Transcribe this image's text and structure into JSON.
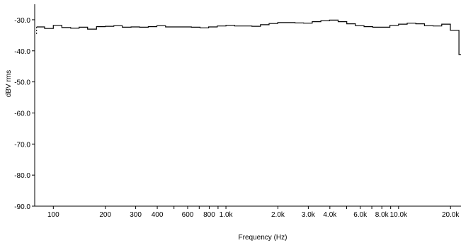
{
  "chart_data": {
    "type": "line",
    "title": "",
    "xlabel": "Frequency (Hz)",
    "ylabel": "dBV rms",
    "xscale": "log",
    "xlim": [
      78,
      23000
    ],
    "ylim": [
      -90,
      -25
    ],
    "grid": false,
    "line_style": "step",
    "colors": {
      "line": "#000000",
      "axis": "#000000",
      "background": "#ffffff"
    },
    "y_ticks": [
      {
        "value": -30,
        "label": "-30.0"
      },
      {
        "value": -40,
        "label": "-40.0"
      },
      {
        "value": -50,
        "label": "-50.0"
      },
      {
        "value": -60,
        "label": "-60.0"
      },
      {
        "value": -70,
        "label": "-70.0"
      },
      {
        "value": -80,
        "label": "-80.0"
      },
      {
        "value": -90,
        "label": "-90.0"
      }
    ],
    "x_ticks": [
      {
        "value": 100,
        "label": "100"
      },
      {
        "value": 200,
        "label": "200"
      },
      {
        "value": 300,
        "label": "300"
      },
      {
        "value": 400,
        "label": "400"
      },
      {
        "value": 500,
        "label": ""
      },
      {
        "value": 600,
        "label": "600"
      },
      {
        "value": 700,
        "label": ""
      },
      {
        "value": 800,
        "label": "800"
      },
      {
        "value": 900,
        "label": ""
      },
      {
        "value": 1000,
        "label": "1.0k"
      },
      {
        "value": 2000,
        "label": "2.0k"
      },
      {
        "value": 3000,
        "label": "3.0k"
      },
      {
        "value": 4000,
        "label": "4.0k"
      },
      {
        "value": 5000,
        "label": ""
      },
      {
        "value": 6000,
        "label": "6.0k"
      },
      {
        "value": 7000,
        "label": ""
      },
      {
        "value": 8000,
        "label": "8.0k"
      },
      {
        "value": 9000,
        "label": ""
      },
      {
        "value": 10000,
        "label": "10.0k"
      },
      {
        "value": 20000,
        "label": "20.0k"
      }
    ],
    "series": [
      {
        "points": [
          {
            "x": 80,
            "y": -32.3
          },
          {
            "x": 89,
            "y": -32.8
          },
          {
            "x": 100,
            "y": -31.8
          },
          {
            "x": 112,
            "y": -32.5
          },
          {
            "x": 126,
            "y": -32.7
          },
          {
            "x": 141,
            "y": -32.4
          },
          {
            "x": 158,
            "y": -33.0
          },
          {
            "x": 178,
            "y": -32.2
          },
          {
            "x": 200,
            "y": -32.1
          },
          {
            "x": 224,
            "y": -31.9
          },
          {
            "x": 251,
            "y": -32.4
          },
          {
            "x": 282,
            "y": -32.3
          },
          {
            "x": 316,
            "y": -32.4
          },
          {
            "x": 355,
            "y": -32.2
          },
          {
            "x": 398,
            "y": -31.9
          },
          {
            "x": 447,
            "y": -32.3
          },
          {
            "x": 501,
            "y": -32.3
          },
          {
            "x": 562,
            "y": -32.3
          },
          {
            "x": 631,
            "y": -32.4
          },
          {
            "x": 708,
            "y": -32.6
          },
          {
            "x": 794,
            "y": -32.3
          },
          {
            "x": 891,
            "y": -32.0
          },
          {
            "x": 1000,
            "y": -31.8
          },
          {
            "x": 1122,
            "y": -32.0
          },
          {
            "x": 1259,
            "y": -32.0
          },
          {
            "x": 1413,
            "y": -32.1
          },
          {
            "x": 1585,
            "y": -31.6
          },
          {
            "x": 1778,
            "y": -31.2
          },
          {
            "x": 1995,
            "y": -30.9
          },
          {
            "x": 2239,
            "y": -30.9
          },
          {
            "x": 2512,
            "y": -31.0
          },
          {
            "x": 2818,
            "y": -31.1
          },
          {
            "x": 3162,
            "y": -30.6
          },
          {
            "x": 3548,
            "y": -30.3
          },
          {
            "x": 3981,
            "y": -30.1
          },
          {
            "x": 4467,
            "y": -30.6
          },
          {
            "x": 5012,
            "y": -31.3
          },
          {
            "x": 5623,
            "y": -31.9
          },
          {
            "x": 6310,
            "y": -32.2
          },
          {
            "x": 7079,
            "y": -32.4
          },
          {
            "x": 7943,
            "y": -32.4
          },
          {
            "x": 8913,
            "y": -31.8
          },
          {
            "x": 10000,
            "y": -31.4
          },
          {
            "x": 11220,
            "y": -31.1
          },
          {
            "x": 12589,
            "y": -31.3
          },
          {
            "x": 14125,
            "y": -31.9
          },
          {
            "x": 15849,
            "y": -32.0
          },
          {
            "x": 17783,
            "y": -31.4
          },
          {
            "x": 19953,
            "y": -33.4
          },
          {
            "x": 22387,
            "y": -41.2
          }
        ],
        "end_x": 23000
      }
    ]
  }
}
